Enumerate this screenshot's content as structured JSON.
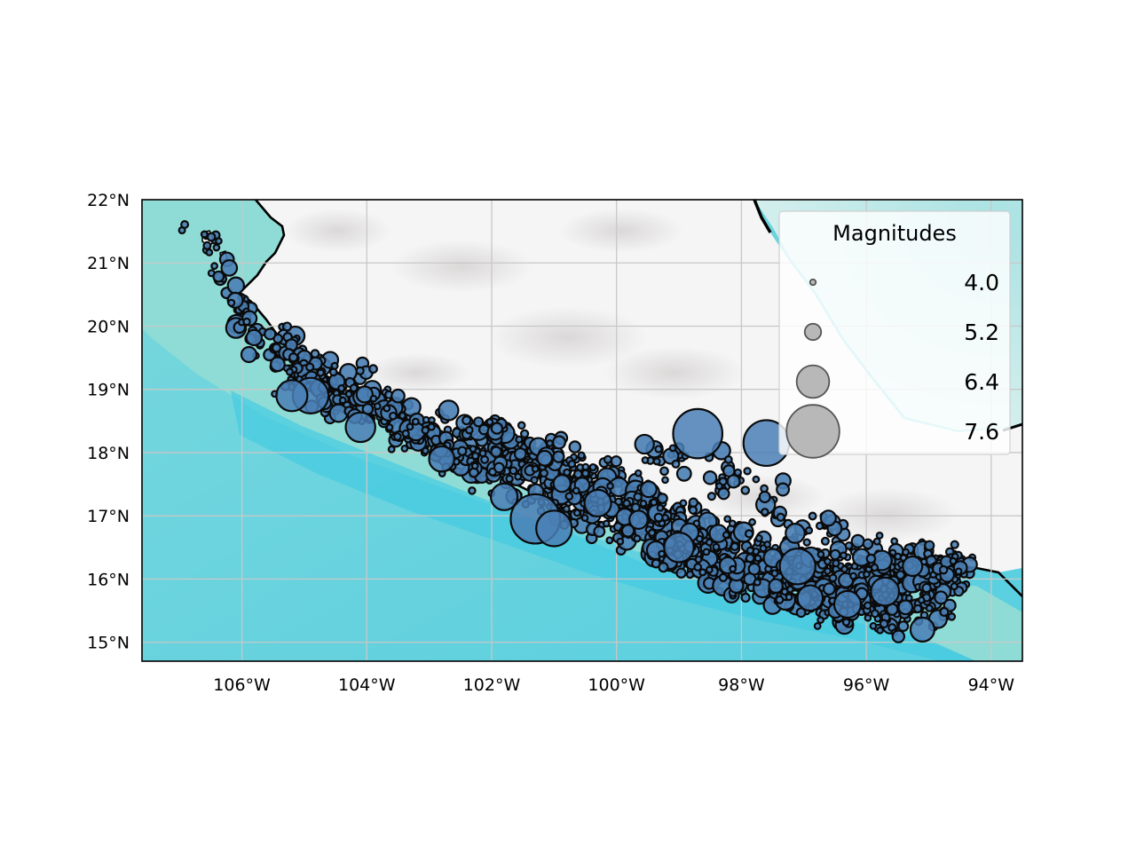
{
  "map": {
    "extent": {
      "lon_min": -107.6,
      "lon_max": -93.5,
      "lat_min": 14.7,
      "lat_max": 22.0
    },
    "x_ticks": [
      {
        "lon": -106,
        "label": "106°W"
      },
      {
        "lon": -104,
        "label": "104°W"
      },
      {
        "lon": -102,
        "label": "102°W"
      },
      {
        "lon": -100,
        "label": "100°W"
      },
      {
        "lon": -98,
        "label": "98°W"
      },
      {
        "lon": -96,
        "label": "96°W"
      },
      {
        "lon": -94,
        "label": "94°W"
      }
    ],
    "y_ticks": [
      {
        "lat": 22,
        "label": "22°N"
      },
      {
        "lat": 21,
        "label": "21°N"
      },
      {
        "lat": 20,
        "label": "20°N"
      },
      {
        "lat": 19,
        "label": "19°N"
      },
      {
        "lat": 18,
        "label": "18°N"
      },
      {
        "lat": 17,
        "label": "17°N"
      },
      {
        "lat": 16,
        "label": "16°N"
      },
      {
        "lat": 15,
        "label": "15°N"
      }
    ],
    "grid": true,
    "colors": {
      "land": "#f4f4f4",
      "ocean_shallow": "#c2e8e2",
      "ocean_mid": "#8fdcd8",
      "ocean_deep": "#6cd5dc",
      "trench": "#48cce0",
      "marker_fill": "#4a7fb5",
      "marker_edge": "#0a0a0a",
      "legend_marker": "#b8b8b8"
    }
  },
  "legend": {
    "title": "Magnitudes",
    "placement": "top-right",
    "entries": [
      {
        "label": "4.0",
        "magnitude": 4.0
      },
      {
        "label": "5.2",
        "magnitude": 5.2
      },
      {
        "label": "6.4",
        "magnitude": 6.4
      },
      {
        "label": "7.6",
        "magnitude": 7.6
      }
    ]
  },
  "earthquakes_large": [
    {
      "lon": -98.7,
      "lat": 18.3,
      "mag": 7.4
    },
    {
      "lon": -97.6,
      "lat": 18.15,
      "mag": 7.2
    },
    {
      "lon": -101.3,
      "lat": 16.95,
      "mag": 7.4
    },
    {
      "lon": -101.0,
      "lat": 16.8,
      "mag": 6.6
    },
    {
      "lon": -104.9,
      "lat": 18.9,
      "mag": 6.6
    },
    {
      "lon": -105.2,
      "lat": 18.9,
      "mag": 6.3
    },
    {
      "lon": -104.1,
      "lat": 18.4,
      "mag": 6.2
    },
    {
      "lon": -97.1,
      "lat": 16.2,
      "mag": 6.6
    },
    {
      "lon": -99.0,
      "lat": 16.5,
      "mag": 6.2
    },
    {
      "lon": -95.7,
      "lat": 15.8,
      "mag": 6.1
    },
    {
      "lon": -96.3,
      "lat": 15.6,
      "mag": 6.0
    },
    {
      "lon": -101.8,
      "lat": 17.3,
      "mag": 6.0
    },
    {
      "lon": -100.3,
      "lat": 17.2,
      "mag": 6.0
    },
    {
      "lon": -102.8,
      "lat": 17.9,
      "mag": 5.9
    },
    {
      "lon": -96.9,
      "lat": 15.7,
      "mag": 5.9
    },
    {
      "lon": -95.1,
      "lat": 15.2,
      "mag": 5.8
    }
  ]
}
